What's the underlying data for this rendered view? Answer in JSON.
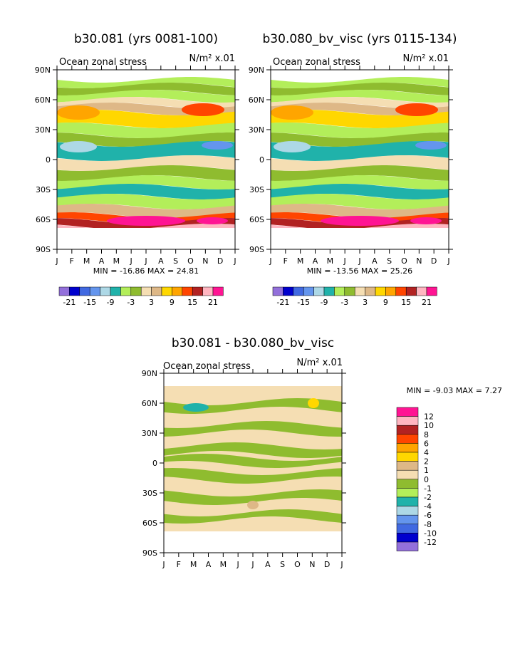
{
  "chart_data": [
    {
      "type": "heatmap",
      "title": "b30.081 (yrs 0081-100)",
      "subtitle_left": "Ocean zonal stress",
      "subtitle_right": "N/m² x.01",
      "x_ticks": [
        "J",
        "F",
        "M",
        "A",
        "M",
        "J",
        "J",
        "A",
        "S",
        "O",
        "N",
        "D",
        "J"
      ],
      "y_ticks": [
        "90N",
        "60N",
        "30N",
        "0",
        "30S",
        "60S",
        "90S"
      ],
      "stats": "MIN = -16.86 MAX =  24.81",
      "min": -16.86,
      "max": 24.81,
      "colorbar": {
        "labels": [
          "-21",
          "-15",
          "-9",
          "-3",
          "3",
          "9",
          "15",
          "21"
        ],
        "levels": [
          -24,
          -21,
          -18,
          -15,
          -12,
          -9,
          -6,
          -3,
          0,
          3,
          6,
          9,
          12,
          15,
          18,
          21,
          24
        ]
      }
    },
    {
      "type": "heatmap",
      "title": "b30.080_bv_visc (yrs 0115-134)",
      "subtitle_left": "Ocean zonal stress",
      "subtitle_right": "N/m² x.01",
      "x_ticks": [
        "J",
        "F",
        "M",
        "A",
        "M",
        "J",
        "J",
        "A",
        "S",
        "O",
        "N",
        "D",
        "J"
      ],
      "y_ticks": [
        "90N",
        "60N",
        "30N",
        "0",
        "30S",
        "60S",
        "90S"
      ],
      "stats": "MIN = -13.56 MAX =  25.26",
      "min": -13.56,
      "max": 25.26,
      "colorbar": {
        "labels": [
          "-21",
          "-15",
          "-9",
          "-3",
          "3",
          "9",
          "15",
          "21"
        ],
        "levels": [
          -24,
          -21,
          -18,
          -15,
          -12,
          -9,
          -6,
          -3,
          0,
          3,
          6,
          9,
          12,
          15,
          18,
          21,
          24
        ]
      }
    },
    {
      "type": "heatmap",
      "title": "b30.081 - b30.080_bv_visc",
      "subtitle_left": "Ocean zonal stress",
      "subtitle_right": "N/m² x.01",
      "x_ticks": [
        "J",
        "F",
        "M",
        "A",
        "M",
        "J",
        "J",
        "A",
        "S",
        "O",
        "N",
        "D",
        "J"
      ],
      "y_ticks": [
        "90N",
        "60N",
        "30N",
        "0",
        "30S",
        "60S",
        "90S"
      ],
      "stats": "MIN =  -9.03 MAX =   7.27",
      "min": -9.03,
      "max": 7.27,
      "colorbar": {
        "labels": [
          "12",
          "10",
          "8",
          "6",
          "4",
          "2",
          "1",
          "0",
          "-1",
          "-2",
          "-4",
          "-6",
          "-8",
          "-10",
          "-12"
        ],
        "levels": [
          -14,
          -12,
          -10,
          -8,
          -6,
          -4,
          -2,
          -1,
          0,
          1,
          2,
          4,
          6,
          8,
          10,
          12,
          14
        ]
      }
    }
  ],
  "palette_full": [
    "#9370db",
    "#0000cd",
    "#4169e1",
    "#6495ed",
    "#add8e6",
    "#20b2aa",
    "#b3ee5a",
    "#8fbc2f",
    "#f5deb3",
    "#deb887",
    "#ffd700",
    "#ffa500",
    "#ff4500",
    "#b22222",
    "#ffb6c1",
    "#ff1493"
  ],
  "palette_diff": [
    "#9370db",
    "#0000cd",
    "#4169e1",
    "#6495ed",
    "#add8e6",
    "#20b2aa",
    "#b3ee5a",
    "#8fbc2f",
    "#f5deb3",
    "#deb887",
    "#ffd700",
    "#ffa500",
    "#ff4500",
    "#b22222",
    "#ffb6c1",
    "#ff1493"
  ]
}
